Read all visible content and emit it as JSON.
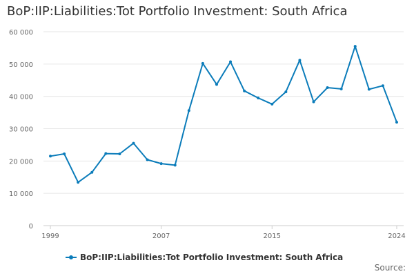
{
  "title": "BoP:IIP:Liabilities:Tot Portfolio Investment: South Africa",
  "source_label": "Source:",
  "colors": {
    "series": "#0b7cba",
    "grid": "#e6e6e6",
    "axis": "#cccccc"
  },
  "chart_data": {
    "type": "line",
    "title": "BoP:IIP:Liabilities:Tot Portfolio Investment: South Africa",
    "xlabel": "",
    "ylabel": "",
    "xlim": [
      1999,
      2024
    ],
    "ylim": [
      0,
      60000
    ],
    "y_ticks": [
      0,
      10000,
      20000,
      30000,
      40000,
      50000,
      60000
    ],
    "y_tick_labels": [
      "0",
      "10 000",
      "20 000",
      "30 000",
      "40 000",
      "50 000",
      "60 000"
    ],
    "x_ticks": [
      1999,
      2007,
      2015,
      2024
    ],
    "x_tick_labels": [
      "1999",
      "2007",
      "2015",
      "2024"
    ],
    "grid": true,
    "legend_position": "bottom",
    "series": [
      {
        "name": "BoP:IIP:Liabilities:Tot Portfolio Investment: South Africa",
        "x": [
          1999,
          2000,
          2001,
          2002,
          2003,
          2004,
          2005,
          2006,
          2007,
          2008,
          2009,
          2010,
          2011,
          2012,
          2013,
          2014,
          2015,
          2016,
          2017,
          2018,
          2019,
          2020,
          2021,
          2022,
          2023,
          2024
        ],
        "values": [
          21500,
          22200,
          13400,
          16500,
          22300,
          22200,
          25500,
          20400,
          19200,
          18700,
          35600,
          50200,
          43700,
          50700,
          41700,
          39500,
          37600,
          41400,
          51200,
          38300,
          42700,
          42300,
          55500,
          42200,
          43300,
          32000
        ]
      }
    ]
  }
}
